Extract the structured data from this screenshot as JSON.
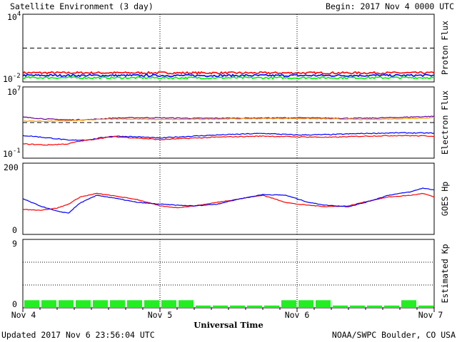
{
  "title": "Satellite Environment (3 day)",
  "begin": "Begin:  2017 Nov 4 0000 UTC",
  "updated": "Updated 2017 Nov  6 23:56:04 UTC",
  "credit": "NOAA/SWPC Boulder, CO USA",
  "xlabel": "Universal Time",
  "colors": {
    "red": "#ff0000",
    "blue": "#0000ff",
    "green": "#00ee00",
    "purple": "#660099",
    "orange": "#ff9900",
    "kp_bar": "#22ee22"
  },
  "chart_data": [
    {
      "type": "line",
      "panel": "proton",
      "ylabel": "Proton Flux",
      "yscale": "log",
      "ylim": [
        0.01,
        10000
      ],
      "ytick_labels": [
        {
          "base": "10",
          "exp": "4"
        },
        {
          "base": "10",
          "exp": "-2"
        }
      ],
      "threshold": 10,
      "x": [
        0,
        24,
        48,
        72
      ],
      "series": [
        {
          "color": "red",
          "values": [
            0.065,
            0.064,
            0.063,
            0.064
          ]
        },
        {
          "color": "blue",
          "values": [
            0.038,
            0.037,
            0.037,
            0.038
          ]
        },
        {
          "color": "green",
          "values": [
            0.024,
            0.023,
            0.023,
            0.024
          ]
        }
      ]
    },
    {
      "type": "line",
      "panel": "electron",
      "ylabel": "Electron Flux",
      "yscale": "log",
      "ylim": [
        0.1,
        10000000
      ],
      "ytick_labels": [
        {
          "base": "10",
          "exp": "7"
        },
        {
          "base": "10",
          "exp": "-1"
        }
      ],
      "threshold": 1000,
      "x": [
        0,
        4,
        8,
        12,
        16,
        20,
        24,
        30,
        36,
        42,
        48,
        54,
        60,
        66,
        72
      ],
      "series": [
        {
          "color": "purple",
          "values": [
            4000,
            2500,
            2000,
            2200,
            3200,
            3500,
            3400,
            3000,
            3100,
            3300,
            3400,
            3100,
            3000,
            3800,
            5000
          ]
        },
        {
          "color": "orange",
          "values": [
            1500,
            1400,
            1600,
            2000,
            2600,
            2400,
            2200,
            2300,
            2600,
            2800,
            2900,
            2500,
            2200,
            2700,
            3500
          ]
        },
        {
          "color": "blue",
          "values": [
            35,
            20,
            10,
            12,
            30,
            25,
            18,
            30,
            45,
            60,
            40,
            45,
            60,
            70,
            65
          ]
        },
        {
          "color": "red",
          "values": [
            4,
            3,
            4,
            12,
            25,
            18,
            12,
            18,
            25,
            30,
            25,
            22,
            30,
            35,
            30
          ]
        }
      ]
    },
    {
      "type": "line",
      "panel": "goes",
      "ylabel": "GOES Hp",
      "yscale": "linear",
      "ylim": [
        0,
        200
      ],
      "ytick_labels": [
        "200",
        "0"
      ],
      "x": [
        0,
        3,
        6,
        8,
        10,
        13,
        16,
        20,
        24,
        27,
        30,
        34,
        38,
        42,
        46,
        48,
        50,
        53,
        57,
        60,
        64,
        68,
        70,
        72
      ],
      "series": [
        {
          "color": "red",
          "values": [
            70,
            68,
            74,
            85,
            105,
            115,
            108,
            98,
            80,
            75,
            80,
            90,
            100,
            110,
            90,
            85,
            82,
            78,
            80,
            92,
            105,
            110,
            115,
            105
          ]
        },
        {
          "color": "blue",
          "values": [
            100,
            80,
            65,
            60,
            88,
            110,
            102,
            90,
            85,
            82,
            80,
            85,
            100,
            112,
            110,
            100,
            90,
            82,
            78,
            90,
            110,
            120,
            130,
            125
          ]
        }
      ]
    },
    {
      "type": "bar",
      "panel": "kp",
      "ylabel": "Estimated Kp",
      "ylim": [
        0,
        9
      ],
      "ytick_labels": [
        "9",
        "0"
      ],
      "bin_hours": 3,
      "values": [
        1,
        1,
        1,
        1,
        1,
        1,
        1,
        1,
        1,
        1,
        0.3,
        0.3,
        0.3,
        0.3,
        0.3,
        1,
        1,
        1,
        0.3,
        0.3,
        0.3,
        0.3,
        1,
        0.3
      ]
    }
  ],
  "x_ticks": {
    "labels": [
      "Nov 4",
      "Nov 5",
      "Nov 6",
      "Nov 7"
    ],
    "hours": [
      0,
      24,
      48,
      72
    ]
  }
}
